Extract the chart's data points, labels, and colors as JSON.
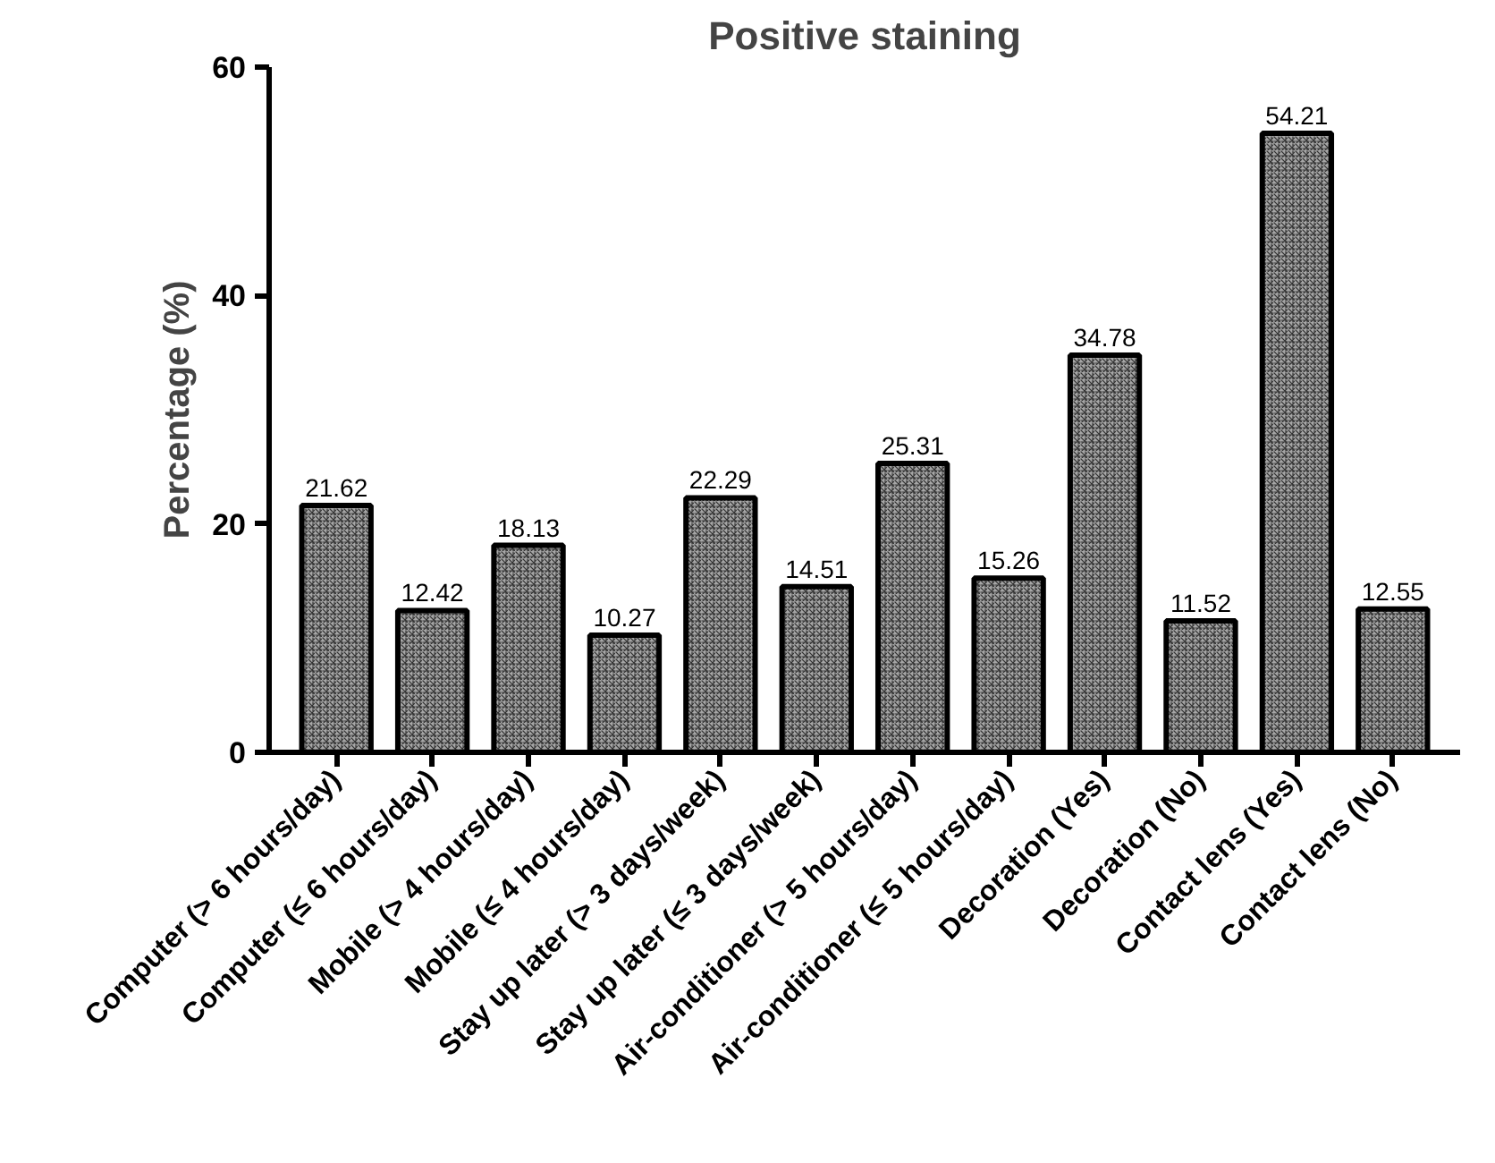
{
  "chart_data": {
    "type": "bar",
    "title": "Positive staining",
    "ylabel": "Percentage (%)",
    "categories": [
      "Computer (> 6 hours/day)",
      "Computer (≤ 6 hours/day)",
      "Mobile (> 4 hours/day)",
      "Mobile (≤ 4 hours/day)",
      "Stay up later (> 3 days/week)",
      "Stay up later (≤ 3 days/week)",
      "Air-conditioner (> 5 hours/day)",
      "Air-conditioner (≤ 5 hours/day)",
      "Decoration (Yes)",
      "Decoration (No)",
      "Contact lens (Yes)",
      "Contact lens (No)"
    ],
    "values": [
      21.62,
      12.42,
      18.13,
      10.27,
      22.29,
      14.51,
      25.31,
      15.26,
      34.78,
      11.52,
      54.21,
      12.55
    ],
    "color": "#a6a6a6",
    "ylim": [
      0,
      60
    ],
    "yticks": [
      0,
      20,
      40,
      60
    ],
    "grid": false,
    "data_labels": true
  }
}
